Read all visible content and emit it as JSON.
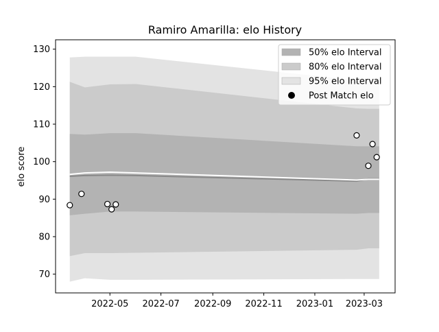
{
  "chart_data": {
    "type": "area",
    "title": "Ramiro Amarilla: elo History",
    "xlabel": "",
    "ylabel": "elo score",
    "x_range": [
      "2022-02-25",
      "2023-04-07"
    ],
    "ylim": [
      65,
      132.5
    ],
    "grid": false,
    "legend_position": "top-right",
    "x_ticks": [
      {
        "date": "2022-05-01",
        "label": "2022-05"
      },
      {
        "date": "2022-07-01",
        "label": "2022-07"
      },
      {
        "date": "2022-09-01",
        "label": "2022-09"
      },
      {
        "date": "2022-11-01",
        "label": "2022-11"
      },
      {
        "date": "2023-01-01",
        "label": "2023-01"
      },
      {
        "date": "2023-03-01",
        "label": "2023-03"
      }
    ],
    "y_ticks": [
      70,
      80,
      90,
      100,
      110,
      120,
      130
    ],
    "legend": [
      {
        "label": "50% elo Interval",
        "color": "#b3b3b3",
        "kind": "band"
      },
      {
        "label": "80% elo Interval",
        "color": "#cbcbcb",
        "kind": "band"
      },
      {
        "label": "95% elo Interval",
        "color": "#e3e3e3",
        "kind": "band"
      },
      {
        "label": "Post Match elo",
        "color": "#000000",
        "kind": "marker"
      }
    ],
    "bands": {
      "dates": [
        "2022-03-14",
        "2022-04-01",
        "2022-05-01",
        "2022-06-01",
        "2023-02-20",
        "2023-03-06",
        "2023-03-19"
      ],
      "p95": {
        "lower": [
          68.0,
          68.9,
          68.5,
          68.5,
          68.7,
          68.7,
          68.7
        ],
        "upper": [
          127.8,
          128.0,
          128.0,
          128.0,
          121.7,
          121.6,
          121.6
        ]
      },
      "p80": {
        "lower": [
          74.8,
          75.6,
          75.6,
          75.7,
          76.5,
          76.9,
          76.9
        ],
        "upper": [
          121.3,
          119.8,
          120.6,
          120.7,
          114.2,
          114.1,
          114.1
        ]
      },
      "p50": {
        "lower": [
          85.7,
          86.1,
          86.7,
          86.7,
          86.1,
          86.3,
          86.3
        ],
        "upper": [
          107.4,
          107.2,
          107.6,
          107.6,
          104.1,
          104.1,
          104.1
        ]
      }
    },
    "series": [
      {
        "kind": "median",
        "color": "#888888",
        "x": [
          "2022-03-14",
          "2022-04-01",
          "2022-05-01",
          "2022-06-01",
          "2023-02-20",
          "2023-03-06",
          "2023-03-19"
        ],
        "y": [
          96.1,
          96.3,
          96.4,
          96.3,
          94.8,
          95.4,
          95.4
        ]
      },
      {
        "kind": "mean",
        "color": "#ffffff",
        "x": [
          "2022-03-14",
          "2022-04-01",
          "2022-05-01",
          "2022-06-01",
          "2023-02-20",
          "2023-03-06",
          "2023-03-19"
        ],
        "y": [
          96.6,
          97.0,
          97.2,
          97.0,
          95.1,
          95.3,
          95.3
        ]
      }
    ],
    "points": [
      {
        "x": "2022-03-14",
        "y": 88.4
      },
      {
        "x": "2022-03-28",
        "y": 91.4
      },
      {
        "x": "2022-04-28",
        "y": 88.7
      },
      {
        "x": "2022-05-03",
        "y": 87.3
      },
      {
        "x": "2022-05-08",
        "y": 88.6
      },
      {
        "x": "2023-02-20",
        "y": 107.0
      },
      {
        "x": "2023-03-06",
        "y": 98.9
      },
      {
        "x": "2023-03-11",
        "y": 104.7
      },
      {
        "x": "2023-03-16",
        "y": 101.2
      }
    ]
  }
}
